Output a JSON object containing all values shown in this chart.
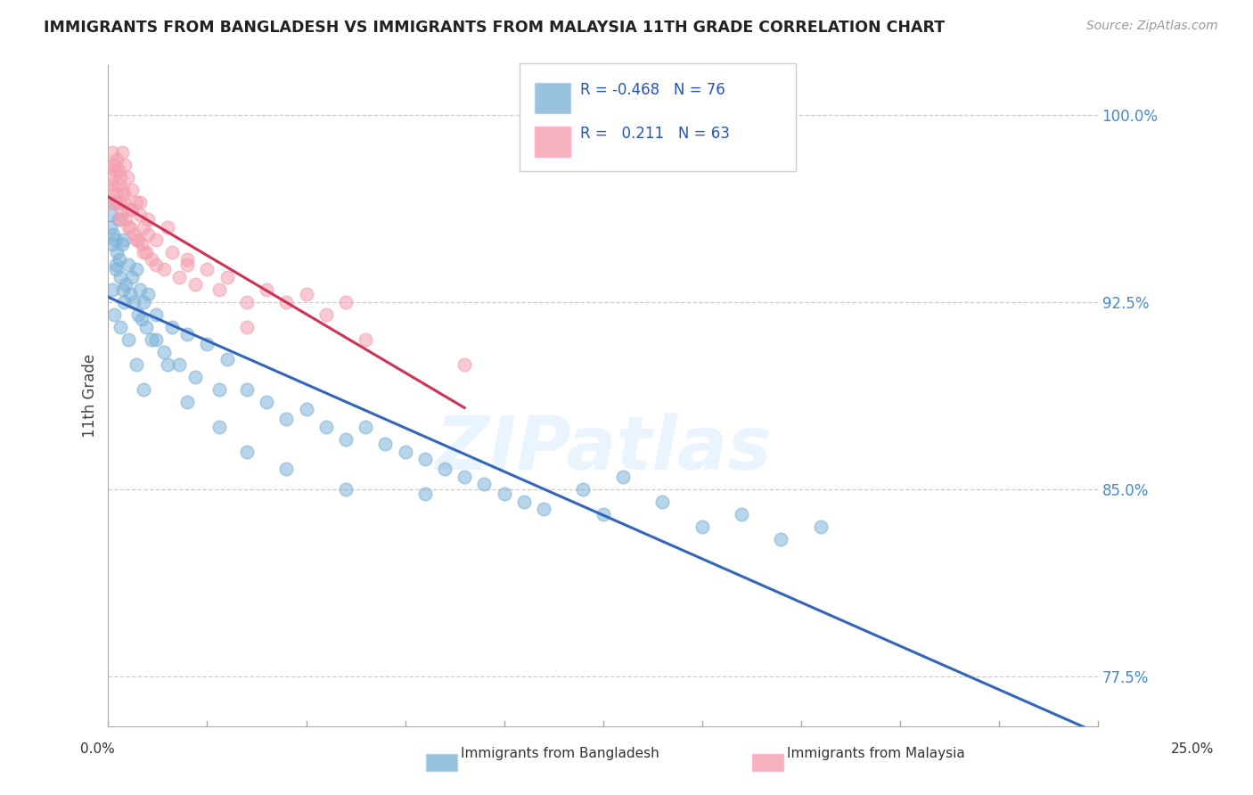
{
  "title": "IMMIGRANTS FROM BANGLADESH VS IMMIGRANTS FROM MALAYSIA 11TH GRADE CORRELATION CHART",
  "source": "Source: ZipAtlas.com",
  "ylabel": "11th Grade",
  "xlim": [
    0.0,
    25.0
  ],
  "ylim": [
    75.5,
    102.0
  ],
  "yticks": [
    77.5,
    85.0,
    92.5,
    100.0
  ],
  "ytick_labels": [
    "77.5%",
    "85.0%",
    "92.5%",
    "100.0%"
  ],
  "legend_blue_R": "-0.468",
  "legend_blue_N": "76",
  "legend_pink_R": "0.211",
  "legend_pink_N": "63",
  "blue_color": "#7EB3D8",
  "pink_color": "#F4A0B0",
  "blue_line_color": "#3366BB",
  "pink_line_color": "#CC3355",
  "watermark": "ZIPatlas",
  "blue_scatter_x": [
    0.05,
    0.08,
    0.1,
    0.12,
    0.15,
    0.18,
    0.2,
    0.22,
    0.25,
    0.28,
    0.3,
    0.35,
    0.38,
    0.4,
    0.45,
    0.5,
    0.55,
    0.6,
    0.65,
    0.7,
    0.75,
    0.8,
    0.85,
    0.9,
    0.95,
    1.0,
    1.1,
    1.2,
    1.4,
    1.6,
    1.8,
    2.0,
    2.2,
    2.5,
    2.8,
    3.0,
    3.5,
    4.0,
    4.5,
    5.0,
    5.5,
    6.0,
    6.5,
    7.0,
    7.5,
    8.0,
    8.5,
    9.0,
    9.5,
    10.0,
    10.5,
    11.0,
    12.0,
    12.5,
    13.0,
    14.0,
    15.0,
    16.0,
    17.0,
    18.0,
    0.1,
    0.15,
    0.2,
    0.3,
    0.4,
    0.5,
    0.7,
    0.9,
    1.2,
    1.5,
    2.0,
    2.8,
    3.5,
    4.5,
    6.0,
    8.0
  ],
  "blue_scatter_y": [
    95.5,
    96.0,
    94.8,
    95.2,
    96.5,
    95.0,
    93.8,
    94.5,
    95.8,
    94.2,
    93.5,
    94.8,
    93.0,
    95.0,
    93.2,
    94.0,
    92.8,
    93.5,
    92.5,
    93.8,
    92.0,
    93.0,
    91.8,
    92.5,
    91.5,
    92.8,
    91.0,
    92.0,
    90.5,
    91.5,
    90.0,
    91.2,
    89.5,
    90.8,
    89.0,
    90.2,
    89.0,
    88.5,
    87.8,
    88.2,
    87.5,
    87.0,
    87.5,
    86.8,
    86.5,
    86.2,
    85.8,
    85.5,
    85.2,
    84.8,
    84.5,
    84.2,
    85.0,
    84.0,
    85.5,
    84.5,
    83.5,
    84.0,
    83.0,
    83.5,
    93.0,
    92.0,
    94.0,
    91.5,
    92.5,
    91.0,
    90.0,
    89.0,
    91.0,
    90.0,
    88.5,
    87.5,
    86.5,
    85.8,
    85.0,
    84.8
  ],
  "pink_scatter_x": [
    0.05,
    0.08,
    0.1,
    0.12,
    0.15,
    0.18,
    0.2,
    0.22,
    0.25,
    0.28,
    0.3,
    0.32,
    0.35,
    0.38,
    0.4,
    0.42,
    0.45,
    0.48,
    0.5,
    0.55,
    0.6,
    0.65,
    0.7,
    0.75,
    0.8,
    0.85,
    0.9,
    0.95,
    1.0,
    1.1,
    1.2,
    1.4,
    1.6,
    1.8,
    2.0,
    2.2,
    2.5,
    2.8,
    3.0,
    3.5,
    4.0,
    4.5,
    5.0,
    5.5,
    6.0,
    0.1,
    0.15,
    0.2,
    0.25,
    0.3,
    0.4,
    0.5,
    0.6,
    0.7,
    0.8,
    0.9,
    1.0,
    1.2,
    1.5,
    2.0,
    3.5,
    6.5,
    9.0
  ],
  "pink_scatter_y": [
    96.5,
    97.0,
    98.5,
    97.5,
    98.0,
    97.8,
    96.8,
    98.2,
    97.2,
    96.5,
    97.5,
    96.0,
    98.5,
    97.0,
    96.5,
    98.0,
    95.8,
    97.5,
    96.2,
    95.5,
    97.0,
    95.2,
    96.5,
    95.0,
    96.0,
    94.8,
    95.5,
    94.5,
    95.2,
    94.2,
    95.0,
    93.8,
    94.5,
    93.5,
    94.0,
    93.2,
    93.8,
    93.0,
    93.5,
    92.5,
    93.0,
    92.5,
    92.8,
    92.0,
    92.5,
    97.2,
    98.0,
    96.5,
    97.8,
    95.8,
    96.8,
    95.5,
    96.2,
    95.0,
    96.5,
    94.5,
    95.8,
    94.0,
    95.5,
    94.2,
    91.5,
    91.0,
    90.0
  ]
}
